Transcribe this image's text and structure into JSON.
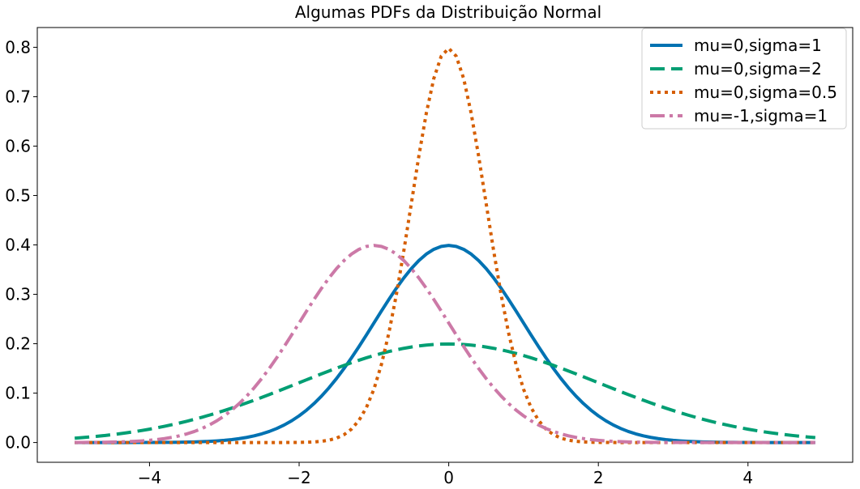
{
  "chart_data": {
    "type": "line",
    "title": "Algumas PDFs da Distribuição Normal",
    "xlabel": "",
    "ylabel": "",
    "xlim": [
      -5.5,
      5.4
    ],
    "ylim": [
      -0.04,
      0.84
    ],
    "x_range": [
      -5.0,
      4.9
    ],
    "x_step": 0.1,
    "xticks": [
      -4,
      -2,
      0,
      2,
      4
    ],
    "xtick_labels": [
      "−4",
      "−2",
      "0",
      "2",
      "4"
    ],
    "yticks": [
      0.0,
      0.1,
      0.2,
      0.3,
      0.4,
      0.5,
      0.6,
      0.7,
      0.8
    ],
    "ytick_labels": [
      "0.0",
      "0.1",
      "0.2",
      "0.3",
      "0.4",
      "0.5",
      "0.6",
      "0.7",
      "0.8"
    ],
    "grid": false,
    "legend_position": "top-right",
    "series": [
      {
        "name": "mu=0,sigma=1",
        "mu": 0,
        "sigma": 1,
        "color": "#0072B2",
        "style": "solid"
      },
      {
        "name": "mu=0,sigma=2",
        "mu": 0,
        "sigma": 2,
        "color": "#009E73",
        "style": "dashed"
      },
      {
        "name": "mu=0,sigma=0.5",
        "mu": 0,
        "sigma": 0.5,
        "color": "#D55E00",
        "style": "dotted"
      },
      {
        "name": "mu=-1,sigma=1",
        "mu": -1,
        "sigma": 1,
        "color": "#CC79A7",
        "style": "dashdot"
      }
    ]
  }
}
